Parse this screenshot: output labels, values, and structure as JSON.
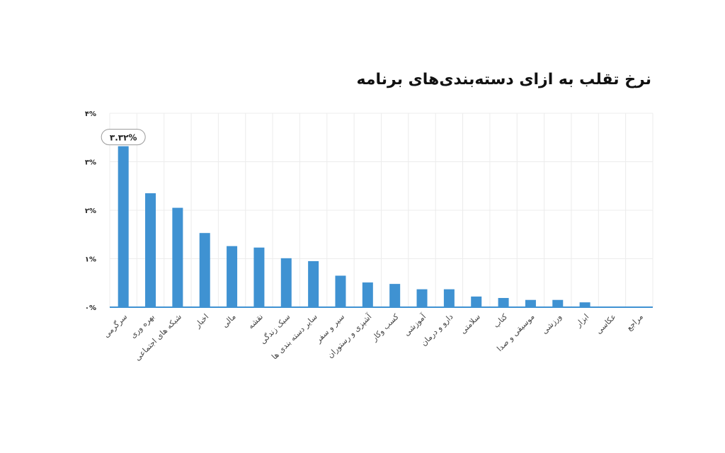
{
  "colors": {
    "bar": "#3f92d2",
    "axis": "#3f92d2",
    "grid": "#ececec",
    "text": "#222222"
  },
  "chart_data": {
    "type": "bar",
    "title": "نرخ تقلب به ازای دسته‌بندی‌های برنامه",
    "xlabel": "",
    "ylabel": "",
    "ylim": [
      0,
      4
    ],
    "yticks": [
      {
        "value": 0,
        "label": "۰%"
      },
      {
        "value": 1,
        "label": "۱%"
      },
      {
        "value": 2,
        "label": "۲%"
      },
      {
        "value": 3,
        "label": "۳%"
      },
      {
        "value": 4,
        "label": "۴%"
      }
    ],
    "categories": [
      "سرگرمی",
      "بهره وری",
      "شبکه های اجتماعی",
      "اخبار",
      "مالی",
      "نقشه",
      "سبک زندگی",
      "سایر دسته بندی ها",
      "سیر و سفر",
      "آشپزی و رستوران",
      "کسب وکار",
      "آموزشی",
      "دارو و درمان",
      "سلامتی",
      "کتاب",
      "موسیقی و صدا",
      "ورزشی",
      "ابزار",
      "عکاسی",
      "مراجع"
    ],
    "values": [
      3.32,
      2.35,
      2.05,
      1.53,
      1.26,
      1.23,
      1.01,
      0.95,
      0.65,
      0.51,
      0.48,
      0.37,
      0.37,
      0.22,
      0.19,
      0.15,
      0.15,
      0.1,
      0.0,
      0.0
    ],
    "callout": {
      "label": "۳.۳۲%",
      "category": "سرگرمی"
    },
    "grid": true,
    "legend": "none"
  }
}
